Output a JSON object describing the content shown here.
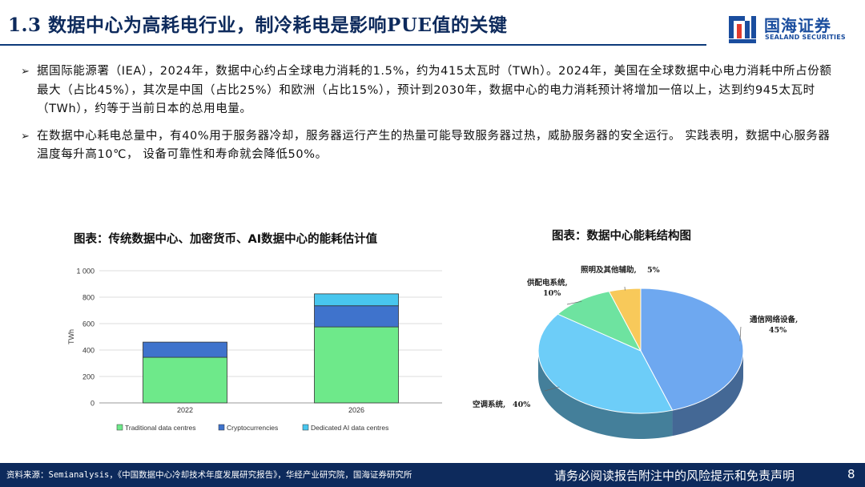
{
  "header": {
    "title": "1.3 数据中心为高耗电行业，制冷耗电是影响PUE值的关键",
    "logo_cn": "国海证券",
    "logo_en": "SEALAND SECURITIES"
  },
  "bullets": [
    "据国际能源署（IEA），2024年，数据中心约占全球电力消耗的1.5%，约为415太瓦时（TWh）。2024年，美国在全球数据中心电力消耗中所占份额最大（占比45%），其次是中国（占比25%）和欧洲（占比15%），预计到2030年，数据中心的电力消耗预计将增加一倍以上，达到约945太瓦时（TWh），约等于当前日本的总用电量。",
    "在数据中心耗电总量中，有40%用于服务器冷却，服务器运行产生的热量可能导致服务器过热，威胁服务器的安全运行。 实践表明，数据中心服务器温度每升高10℃， 设备可靠性和寿命就会降低50%。"
  ],
  "figures": {
    "left_title": "图表：传统数据中心、加密货币、AI数据中心的能耗估计值",
    "right_title": "图表：数据中心能耗结构图"
  },
  "chart_data": [
    {
      "type": "bar",
      "stacked": true,
      "categories": [
        "2022",
        "2026"
      ],
      "series": [
        {
          "name": "Traditional data centres",
          "values": [
            345,
            575
          ],
          "color": "#6ee98a"
        },
        {
          "name": "Cryptocurrencies",
          "values": [
            115,
            160
          ],
          "color": "#3f73cc"
        },
        {
          "name": "Dedicated AI data centres",
          "values": [
            0,
            90
          ],
          "color": "#48c6ee"
        }
      ],
      "ylabel": "TWh",
      "ylim": [
        0,
        1000
      ],
      "yticks": [
        "0",
        "200",
        "400",
        "600",
        "800",
        "1 000"
      ],
      "ytick_values": [
        0,
        200,
        400,
        600,
        800,
        1000
      ],
      "grid": true,
      "legend": "bottom"
    },
    {
      "type": "pie",
      "style": "3d",
      "slices": [
        {
          "label": "通信网络设备",
          "value": 45,
          "text": "通信网络设备,",
          "pct": "45%",
          "color": "#6ea8f0"
        },
        {
          "label": "空调系统",
          "value": 40,
          "text": "空调系统,",
          "pct": "40%",
          "color": "#6dcdf8"
        },
        {
          "label": "供配电系统",
          "value": 10,
          "text": "供配电系统,",
          "pct": "10%",
          "color": "#6ee3a0"
        },
        {
          "label": "照明及其他辅助",
          "value": 5,
          "text": "照明及其他辅助,",
          "pct": "5%",
          "color": "#f8c95a"
        }
      ]
    }
  ],
  "footer": {
    "source": "资料来源：Semianalysis，《中国数据中心冷却技术年度发展研究报告》，华经产业研究院，国海证券研究所",
    "disclaimer": "请务必阅读报告附注中的风险提示和免责声明",
    "page": "8"
  }
}
